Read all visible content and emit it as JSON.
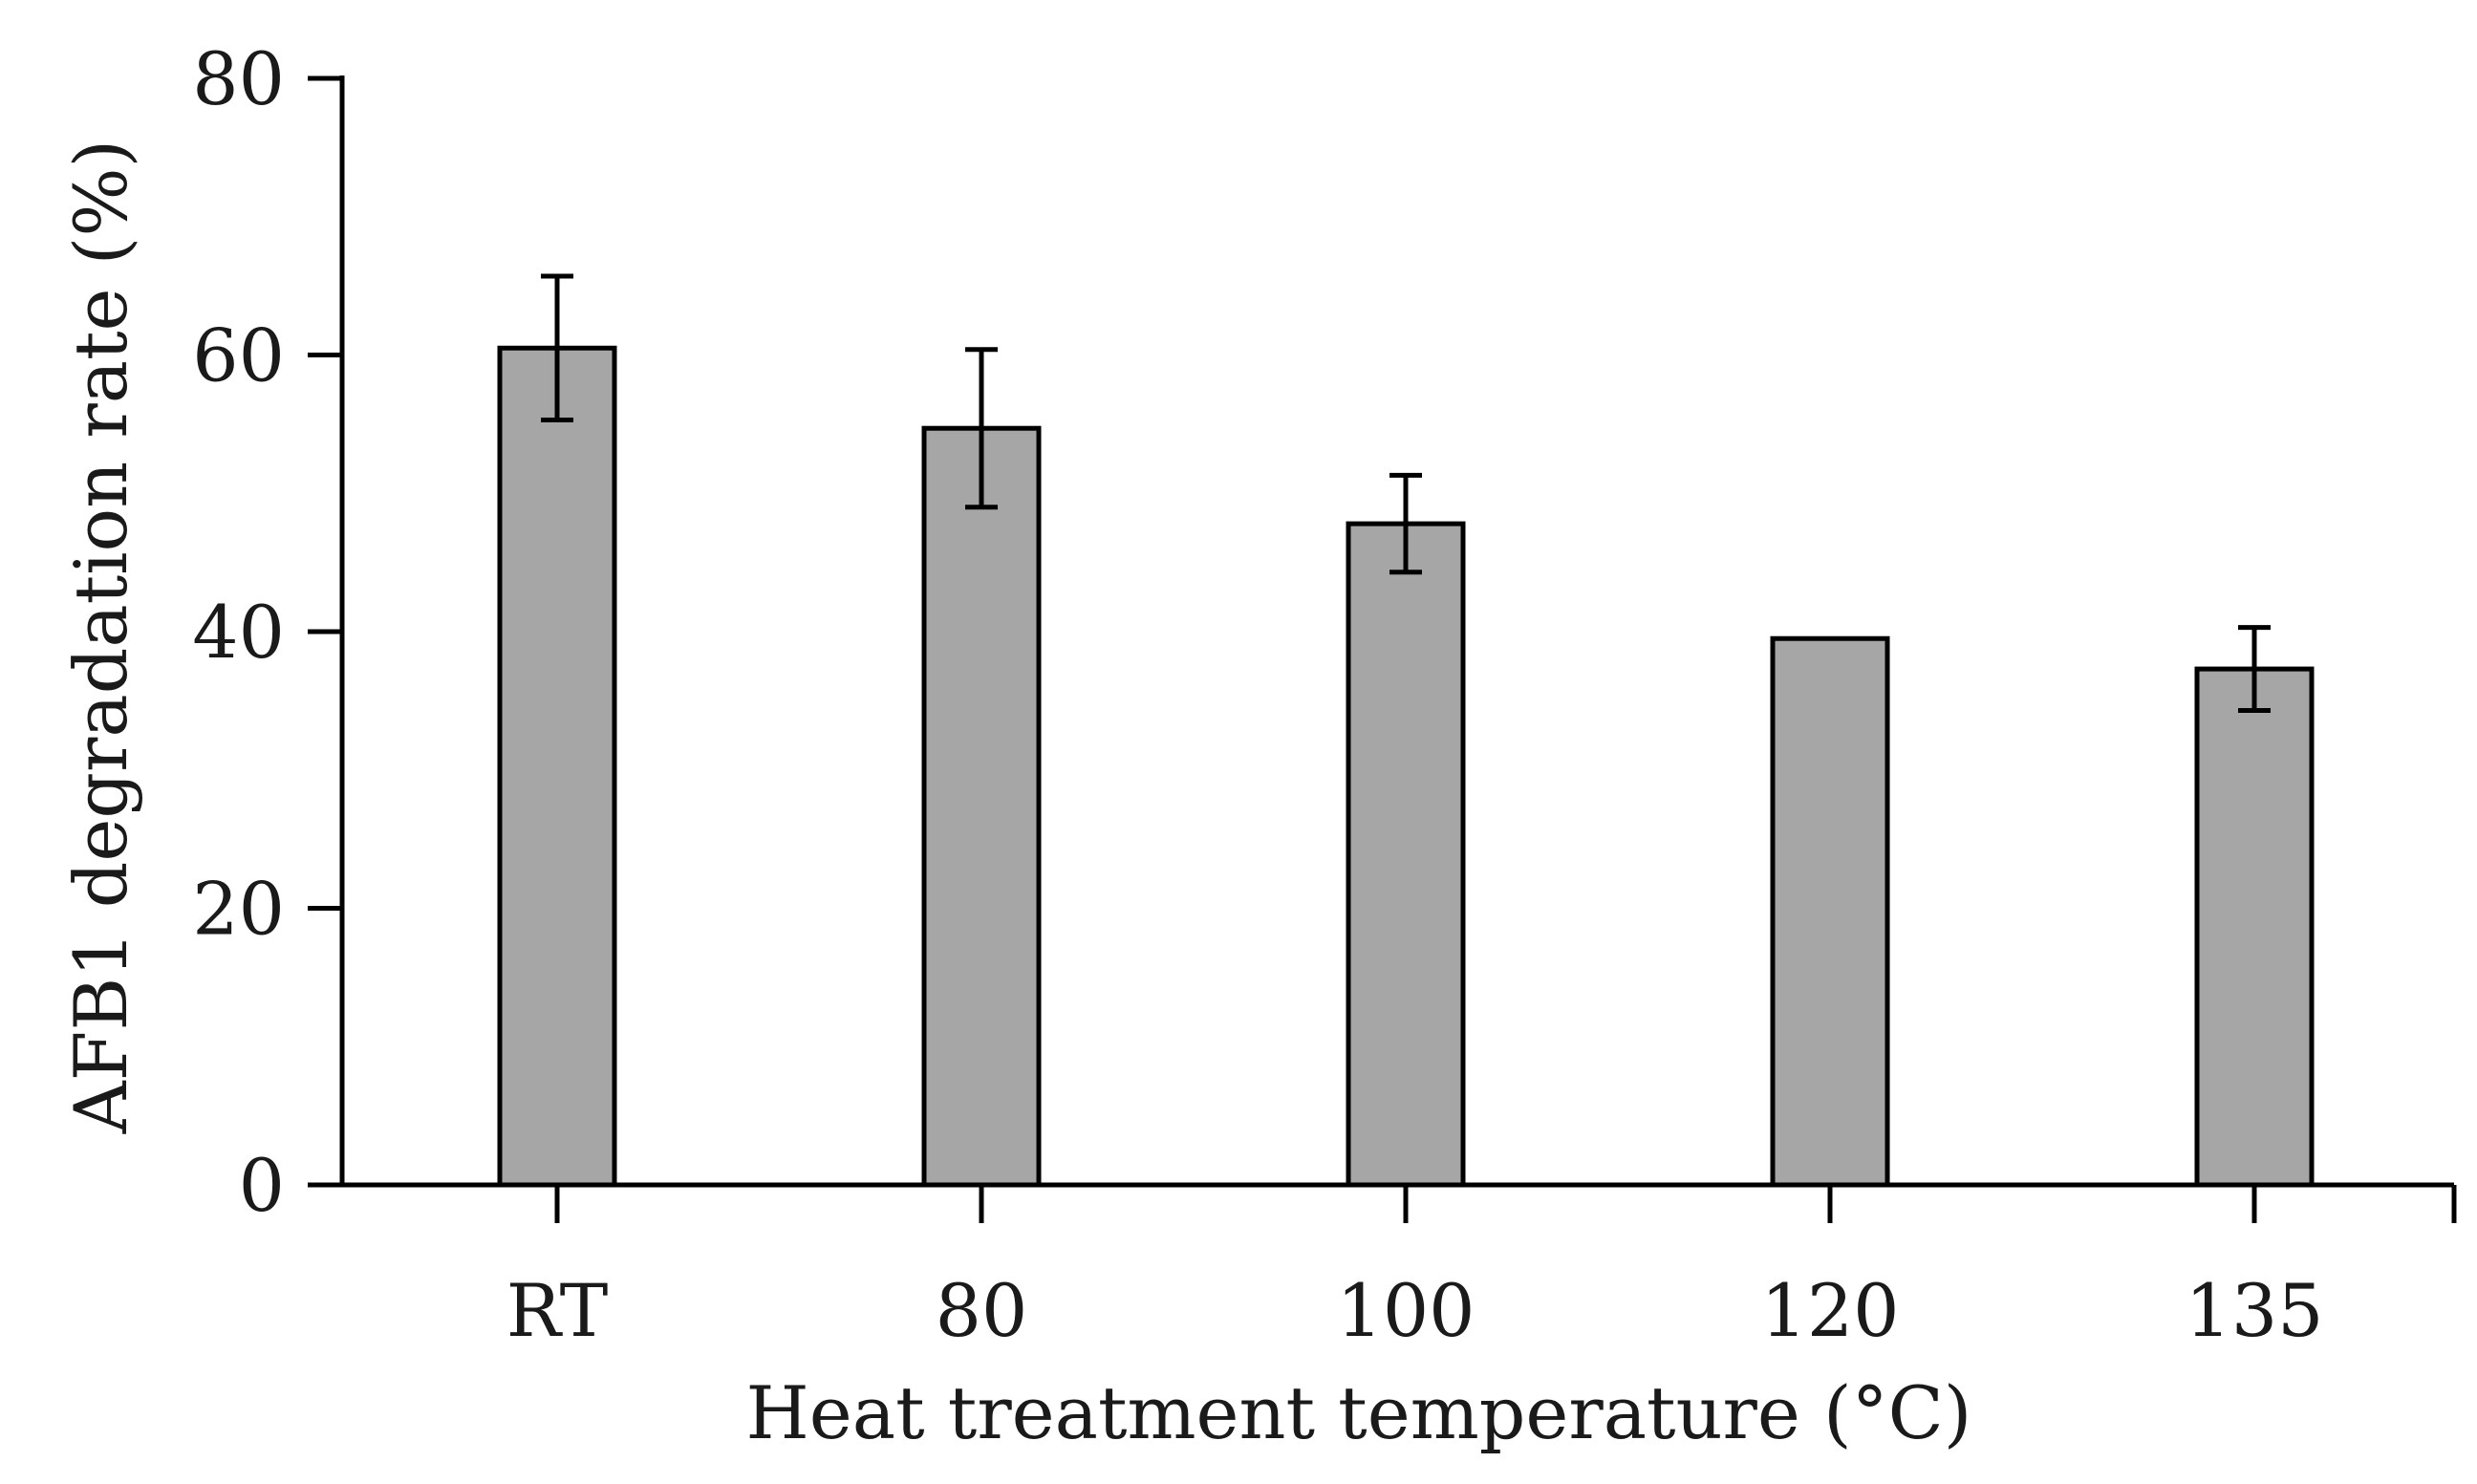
{
  "chart_data": {
    "type": "bar",
    "title": "",
    "xlabel": "Heat treatment temperature (°C)",
    "ylabel": "AFB1 degradation rate (%)",
    "categories": [
      "RT",
      "80",
      "100",
      "120",
      "135"
    ],
    "values": [
      60.5,
      54.7,
      47.8,
      39.5,
      37.3
    ],
    "error": [
      5.2,
      5.7,
      3.5,
      0,
      3.0
    ],
    "ylim": [
      0,
      80
    ],
    "yticks": [
      "0",
      "20",
      "40",
      "60",
      "80"
    ],
    "grid": false,
    "bar_color": "#a6a6a6",
    "edge_color": "#000000"
  }
}
